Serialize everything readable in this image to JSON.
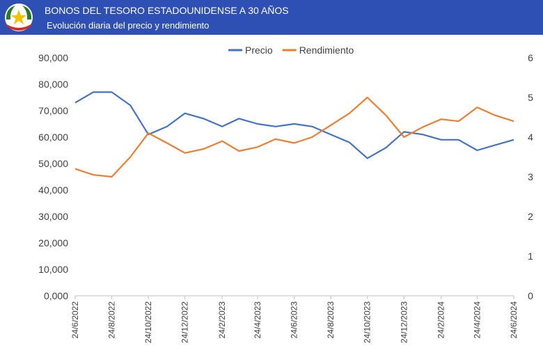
{
  "header": {
    "title": "BONOS DEL TESORO ESTADOUNIDENSE A 30 AÑOS",
    "subtitle": "Evolución diaria del precio y rendimiento"
  },
  "colors": {
    "header_bg": "#2e4fb4",
    "precio": "#4472c4",
    "rendimiento": "#ed7d31"
  },
  "chart_data": {
    "type": "line",
    "title": "",
    "y_left": {
      "min": 0,
      "max": 90,
      "step": 10,
      "tick_labels": [
        "0,000",
        "10,000",
        "20,000",
        "30,000",
        "40,000",
        "50,000",
        "60,000",
        "70,000",
        "80,000",
        "90,000"
      ]
    },
    "y_right": {
      "min": 0,
      "max": 6,
      "step": 1,
      "tick_labels": [
        "0",
        "1",
        "2",
        "3",
        "4",
        "5",
        "6"
      ]
    },
    "x_tick_labels": [
      "24/6/2022",
      "24/8/2022",
      "24/10/2022",
      "24/12/2022",
      "24/2/2023",
      "24/4/2023",
      "24/6/2023",
      "24/8/2023",
      "24/10/2023",
      "24/12/2023",
      "24/2/2024",
      "24/4/2024",
      "24/6/2024"
    ],
    "legend": {
      "position": "top"
    },
    "grid": false,
    "series": [
      {
        "name": "Precio",
        "axis": "left",
        "color": "#4472c4",
        "x": [
          "24/6/2022",
          "24/7/2022",
          "24/8/2022",
          "24/9/2022",
          "24/10/2022",
          "24/11/2022",
          "24/12/2022",
          "24/1/2023",
          "24/2/2023",
          "24/3/2023",
          "24/4/2023",
          "24/5/2023",
          "24/6/2023",
          "24/7/2023",
          "24/8/2023",
          "24/9/2023",
          "24/10/2023",
          "24/11/2023",
          "24/12/2023",
          "24/1/2024",
          "24/2/2024",
          "24/3/2024",
          "24/4/2024",
          "24/5/2024",
          "24/6/2024"
        ],
        "values": [
          73,
          77,
          77,
          72,
          61,
          64,
          69,
          67,
          64,
          67,
          65,
          64,
          65,
          64,
          61,
          58,
          52,
          56,
          62,
          61,
          59,
          59,
          55,
          57,
          59
        ]
      },
      {
        "name": "Rendimiento",
        "axis": "right",
        "color": "#ed7d31",
        "x": [
          "24/6/2022",
          "24/7/2022",
          "24/8/2022",
          "24/9/2022",
          "24/10/2022",
          "24/11/2022",
          "24/12/2022",
          "24/1/2023",
          "24/2/2023",
          "24/3/2023",
          "24/4/2023",
          "24/5/2023",
          "24/6/2023",
          "24/7/2023",
          "24/8/2023",
          "24/9/2023",
          "24/10/2023",
          "24/11/2023",
          "24/12/2023",
          "24/1/2024",
          "24/2/2024",
          "24/3/2024",
          "24/4/2024",
          "24/5/2024",
          "24/6/2024"
        ],
        "values": [
          3.2,
          3.05,
          3.0,
          3.5,
          4.1,
          3.85,
          3.6,
          3.7,
          3.9,
          3.65,
          3.75,
          3.95,
          3.85,
          4.0,
          4.3,
          4.6,
          5.0,
          4.55,
          4.0,
          4.25,
          4.45,
          4.4,
          4.75,
          4.55,
          4.4
        ]
      }
    ]
  }
}
